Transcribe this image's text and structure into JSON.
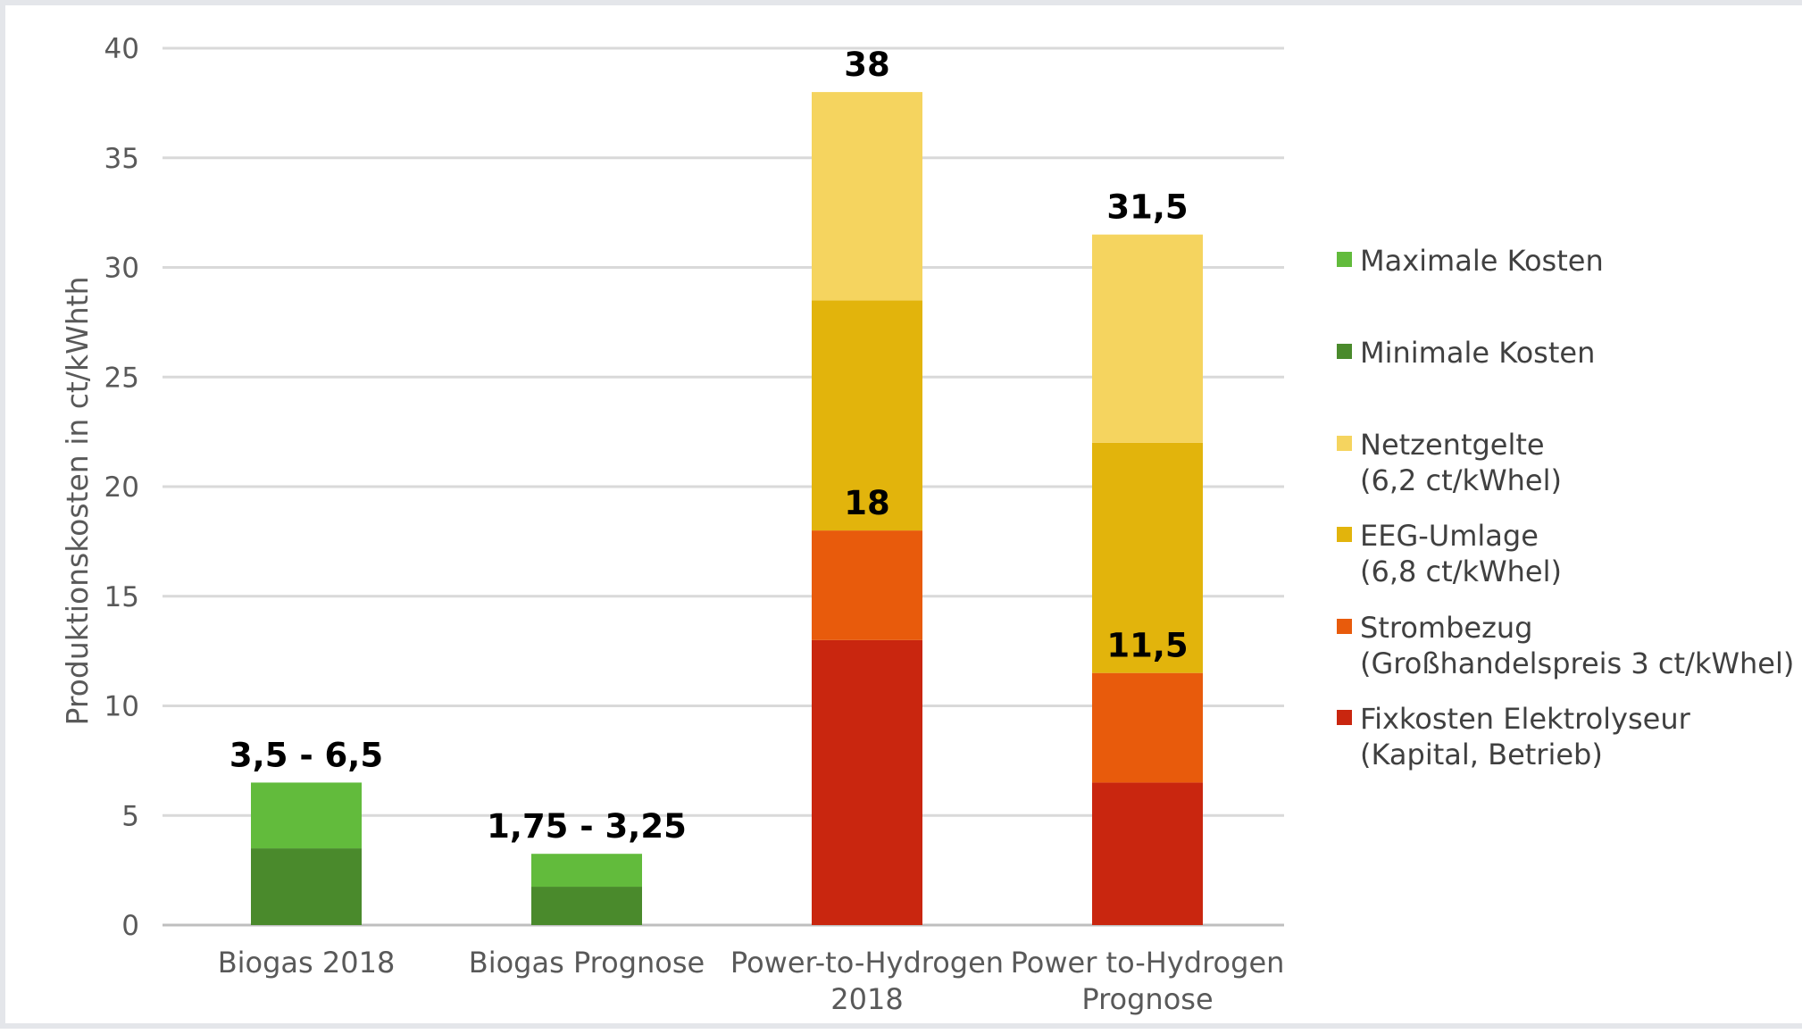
{
  "chart_data": {
    "type": "bar",
    "stacked": true,
    "title": "",
    "ylabel": "Produktionskosten in ct/kWhth",
    "ylim": [
      0,
      40
    ],
    "yticks": [
      0,
      5,
      10,
      15,
      20,
      25,
      30,
      35,
      40
    ],
    "grid": true,
    "legend_position": "right",
    "categories": [
      [
        "Biogas 2018"
      ],
      [
        "Biogas Prognose"
      ],
      [
        "Power-to-Hydrogen",
        "2018"
      ],
      [
        "Power to-Hydrogen",
        "Prognose"
      ]
    ],
    "series": [
      {
        "name": "Fixkosten Elektrolyseur (Kapital, Betrieb)",
        "legend_lines": [
          "Fixkosten Elektrolyseur",
          "(Kapital, Betrieb)"
        ],
        "color": "#c9260f",
        "values": [
          0,
          0,
          13,
          6.5
        ]
      },
      {
        "name": "Strombezug (Großhandelspreis 3 ct/kWhel)",
        "legend_lines": [
          "Strombezug",
          "(Großhandelspreis 3 ct/kWhel)"
        ],
        "color": "#e85b0c",
        "values": [
          0,
          0,
          5,
          5
        ]
      },
      {
        "name": "EEG-Umlage (6,8 ct/kWhel)",
        "legend_lines": [
          "EEG-Umlage",
          "(6,8 ct/kWhel)"
        ],
        "color": "#e2b40c",
        "values": [
          0,
          0,
          10.5,
          10.5
        ]
      },
      {
        "name": "Netzentgelte (6,2 ct/kWhel)",
        "legend_lines": [
          "Netzentgelte",
          "(6,2 ct/kWhel)"
        ],
        "color": "#f5d45f",
        "values": [
          0,
          0,
          9.5,
          9.5
        ]
      },
      {
        "name": "Minimale Kosten",
        "legend_lines": [
          "Minimale Kosten"
        ],
        "color": "#4a8a2c",
        "values": [
          3.5,
          1.75,
          0,
          0
        ]
      },
      {
        "name": "Maximale Kosten",
        "legend_lines": [
          "Maximale Kosten"
        ],
        "color": "#62bb3c",
        "values": [
          3,
          1.5,
          0,
          0
        ]
      }
    ],
    "legend_order": [
      5,
      4,
      3,
      2,
      1,
      0
    ],
    "data_labels": [
      {
        "category": 0,
        "value": 6.5,
        "text": "3,5 - 6,5"
      },
      {
        "category": 1,
        "value": 3.25,
        "text": "1,75 - 3,25"
      },
      {
        "category": 2,
        "value": 38,
        "text": "38"
      },
      {
        "category": 2,
        "value": 18,
        "text": "18"
      },
      {
        "category": 3,
        "value": 31.5,
        "text": "31,5"
      },
      {
        "category": 3,
        "value": 11.5,
        "text": "11,5"
      }
    ]
  }
}
